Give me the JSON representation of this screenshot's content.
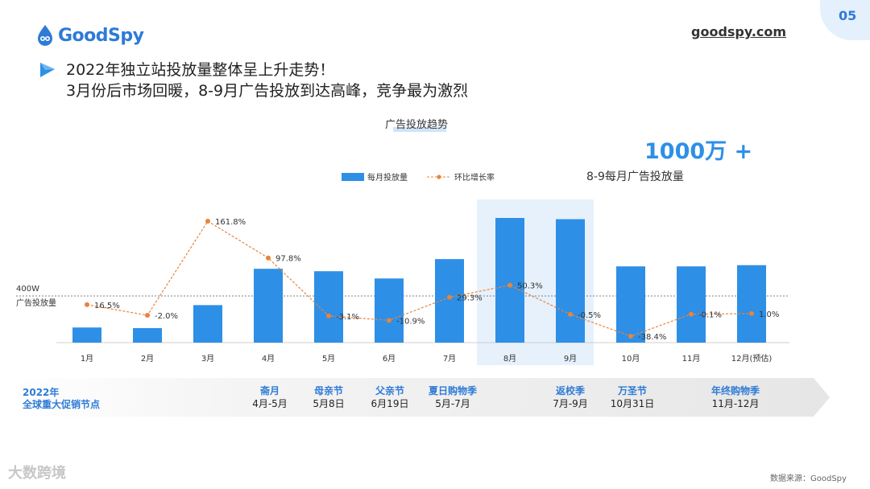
{
  "brand": {
    "logo_text": "GoodSpy",
    "url": "goodspy.com",
    "page_number": "05"
  },
  "headline": {
    "line1": "2022年独立站投放量整体呈上升走势！",
    "line2": "3月份后市场回暖，8-9月广告投放到达高峰，竞争最为激烈"
  },
  "highlight": {
    "value": "1000万 +",
    "label": "8-9每月广告投放量"
  },
  "reference": {
    "value_label": "400W",
    "name": "广告投放量"
  },
  "chart_data": {
    "type": "bar",
    "title": "广告投放趋势",
    "categories": [
      "1月",
      "2月",
      "3月",
      "4月",
      "5月",
      "6月",
      "7月",
      "8月",
      "9月",
      "10月",
      "11月",
      "12月(预估)"
    ],
    "series": [
      {
        "name": "每月投放量",
        "kind": "bar",
        "unit": "万",
        "values": [
          125,
          120,
          310,
          610,
          590,
          530,
          690,
          1030,
          1020,
          630,
          630,
          640
        ]
      },
      {
        "name": "环比增长率",
        "kind": "line",
        "unit": "%",
        "values": [
          16.5,
          -2.0,
          161.8,
          97.8,
          -3.1,
          -10.9,
          29.3,
          50.3,
          -0.5,
          -38.4,
          -0.1,
          1.0
        ],
        "labels": [
          "16.5%",
          "-2.0%",
          "161.8%",
          "97.8%",
          "-3.1%",
          "-10.9%",
          "29.3%",
          "50.3%",
          "-0.5%",
          "-38.4%",
          "-0.1%",
          "1.0%"
        ]
      }
    ],
    "reference_line": 400,
    "highlight_categories": [
      "8月",
      "9月"
    ],
    "ylim_bar": [
      0,
      1080
    ],
    "ylim_rate": [
      -50,
      170
    ],
    "legend_position": "top-center"
  },
  "promo": {
    "year": "2022年",
    "title": "全球重大促销节点",
    "items": [
      {
        "name": "斋月",
        "date": "4月-5月"
      },
      {
        "name": "母亲节",
        "date": "5月8日"
      },
      {
        "name": "父亲节",
        "date": "6月19日"
      },
      {
        "name": "夏日购物季",
        "date": "5月-7月"
      },
      {
        "name": "返校季",
        "date": "7月-9月"
      },
      {
        "name": "万圣节",
        "date": "10月31日"
      },
      {
        "name": "年终购物季",
        "date": "11月-12月"
      }
    ]
  },
  "source": "数据来源：GoodSpy",
  "watermark": "大数跨境",
  "colors": {
    "accent": "#2e8fe6",
    "bar": "#2e8fe6",
    "line": "#e8843c",
    "highlight_band": "#e6f1fc"
  }
}
